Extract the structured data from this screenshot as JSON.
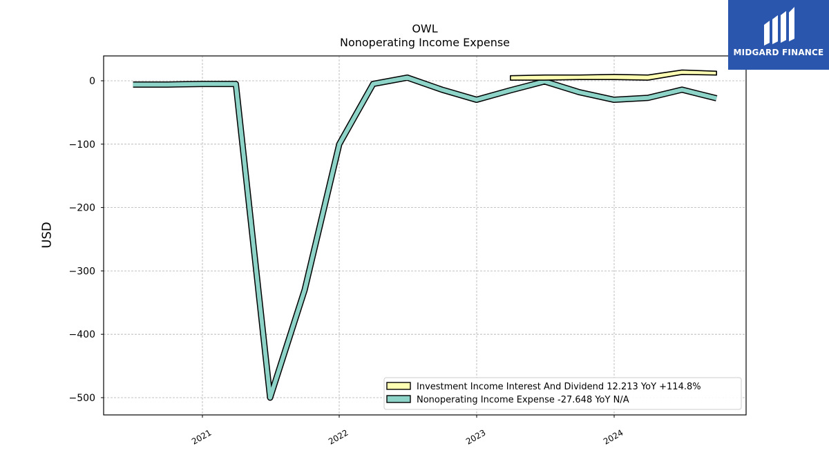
{
  "header": {
    "ticker": "OWL",
    "subtitle": "Nonoperating Income Expense"
  },
  "logo": {
    "text": "MIDGARD FINANCE",
    "icon": "midgard-finance-logo-icon",
    "background": "#2a56ad"
  },
  "chart_data": {
    "type": "area",
    "title": "OWL",
    "subtitle": "Nonoperating Income Expense",
    "ylabel": "USD",
    "xlabel": "",
    "ylim": [
      -525,
      40
    ],
    "x_tick_labels": [
      "2021",
      "2022",
      "2023",
      "2024"
    ],
    "y_tick_labels": [
      "0",
      "−100",
      "−200",
      "−300",
      "−400",
      "−500"
    ],
    "y_tick_values": [
      0,
      -100,
      -200,
      -300,
      -400,
      -500
    ],
    "grid": true,
    "legend_position": "lower-right",
    "series": [
      {
        "name": "Investment Income Interest And Dividend",
        "legend_label": "Investment Income Interest And Dividend  12.213 YoY +114.8%",
        "color": "#ffffb3",
        "x": [
          "2023-03-31",
          "2023-06-30",
          "2023-09-30",
          "2023-12-31",
          "2024-03-31",
          "2024-06-30",
          "2024-09-30"
        ],
        "upper": [
          8,
          9,
          9,
          10,
          9,
          17,
          15
        ],
        "lower": [
          1,
          1,
          2,
          2,
          1,
          10,
          9
        ]
      },
      {
        "name": "Nonoperating Income Expense",
        "legend_label": "Nonoperating Income Expense  -27.648 YoY N/A",
        "color": "#8dd3c7",
        "x": [
          "2020-06-30",
          "2020-09-30",
          "2020-12-31",
          "2021-03-31",
          "2021-06-30",
          "2021-09-30",
          "2021-12-31",
          "2022-03-31",
          "2022-06-30",
          "2022-09-30",
          "2022-12-31",
          "2023-03-31",
          "2023-06-30",
          "2023-09-30",
          "2023-12-31",
          "2024-03-31",
          "2024-06-30",
          "2024-09-30"
        ],
        "values": [
          -6,
          -6,
          -5,
          -5,
          -500,
          -330,
          -100,
          -5,
          5,
          -14,
          -30,
          -15,
          -1,
          -18,
          -30,
          -27,
          -14,
          -27.648
        ]
      }
    ]
  }
}
